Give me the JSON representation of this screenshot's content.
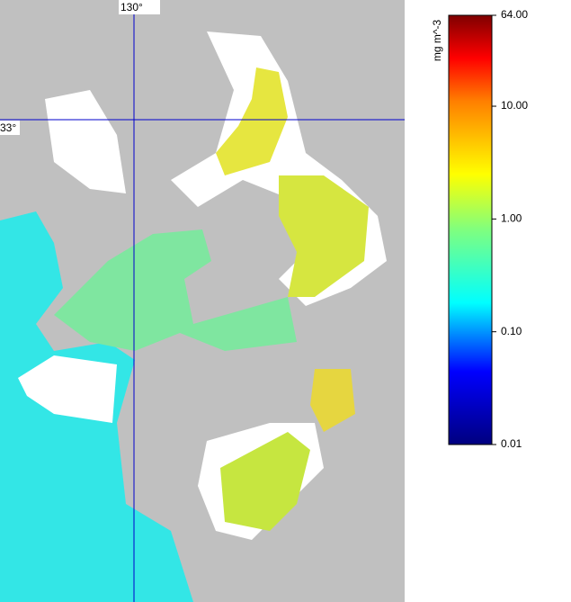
{
  "map": {
    "lon_label": "130°",
    "lat_label": "33°"
  },
  "colorbar": {
    "unit": "mg m^-3",
    "lim": [
      0.01,
      64
    ],
    "log": true,
    "ticks": [
      {
        "value": 64,
        "label": "64.00"
      },
      {
        "value": 10,
        "label": "10.00"
      },
      {
        "value": 1,
        "label": "1.00"
      },
      {
        "value": 0.1,
        "label": "0.10"
      },
      {
        "value": 0.01,
        "label": "0.01"
      }
    ]
  }
}
